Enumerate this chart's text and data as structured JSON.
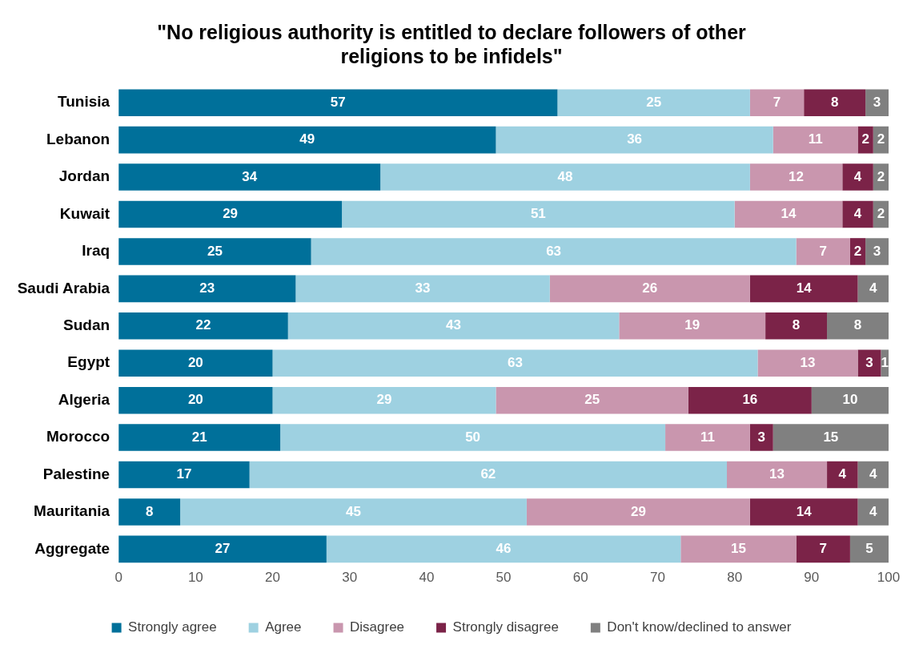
{
  "chart_data": {
    "type": "bar",
    "orientation": "horizontal",
    "stacked": true,
    "title": "\"No religious authority is entitled to declare followers of other religions to be infidels\"",
    "categories": [
      "Tunisia",
      "Lebanon",
      "Jordan",
      "Kuwait",
      "Iraq",
      "Saudi Arabia",
      "Sudan",
      "Egypt",
      "Algeria",
      "Morocco",
      "Palestine",
      "Mauritania",
      "Aggregate"
    ],
    "series": [
      {
        "name": "Strongly agree",
        "color": "#00709a",
        "values": [
          57,
          49,
          34,
          29,
          25,
          23,
          22,
          20,
          20,
          21,
          17,
          8,
          27
        ]
      },
      {
        "name": "Agree",
        "color": "#9ed1e1",
        "values": [
          25,
          36,
          48,
          51,
          63,
          33,
          43,
          63,
          29,
          50,
          62,
          45,
          46
        ]
      },
      {
        "name": "Disagree",
        "color": "#c996ae",
        "values": [
          7,
          11,
          12,
          14,
          7,
          26,
          19,
          13,
          25,
          11,
          13,
          29,
          15
        ]
      },
      {
        "name": "Strongly disagree",
        "color": "#7b2348",
        "values": [
          8,
          2,
          4,
          4,
          2,
          14,
          8,
          3,
          16,
          3,
          4,
          14,
          7
        ]
      },
      {
        "name": "Don't know/declined to answer",
        "color": "#808080",
        "values": [
          3,
          2,
          2,
          2,
          3,
          4,
          8,
          1,
          10,
          15,
          4,
          4,
          5
        ]
      }
    ],
    "xlim": [
      0,
      100
    ],
    "xticks": [
      0,
      10,
      20,
      30,
      40,
      50,
      60,
      70,
      80,
      90,
      100
    ],
    "legend": "bottom",
    "data_labels": true
  }
}
